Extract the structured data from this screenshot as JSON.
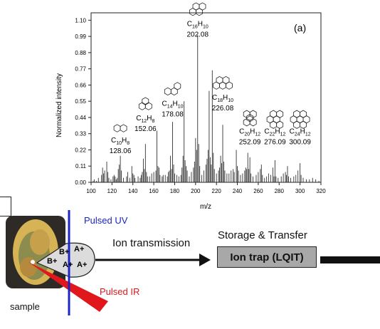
{
  "chart_data": {
    "type": "bar",
    "panel_label": "(a)",
    "xlabel": "m/z",
    "ylabel": "Normalized intensity",
    "xlim": [
      100,
      320
    ],
    "ylim": [
      0,
      1.15
    ],
    "xticks": [
      100,
      120,
      140,
      160,
      180,
      200,
      220,
      240,
      260,
      280,
      300,
      320
    ],
    "yticks": [
      "0.00",
      "0.11",
      "0.22",
      "0.33",
      "0.44",
      "0.55",
      "0.66",
      "0.77",
      "0.88",
      "0.99",
      "1.10"
    ],
    "peaks": [
      {
        "x": 102,
        "y": 0.01
      },
      {
        "x": 103,
        "y": 0.02
      },
      {
        "x": 105,
        "y": 0.01
      },
      {
        "x": 107,
        "y": 0.03
      },
      {
        "x": 110,
        "y": 0.05
      },
      {
        "x": 111,
        "y": 0.1
      },
      {
        "x": 112,
        "y": 0.06
      },
      {
        "x": 113,
        "y": 0.08
      },
      {
        "x": 115,
        "y": 0.14
      },
      {
        "x": 116,
        "y": 0.07
      },
      {
        "x": 117,
        "y": 0.03
      },
      {
        "x": 119,
        "y": 0.02
      },
      {
        "x": 121,
        "y": 0.04
      },
      {
        "x": 122,
        "y": 0.05
      },
      {
        "x": 123,
        "y": 0.04
      },
      {
        "x": 124,
        "y": 0.02
      },
      {
        "x": 125,
        "y": 0.03
      },
      {
        "x": 126,
        "y": 0.09
      },
      {
        "x": 127,
        "y": 0.12
      },
      {
        "x": 128,
        "y": 0.18
      },
      {
        "x": 129,
        "y": 0.08
      },
      {
        "x": 131,
        "y": 0.03
      },
      {
        "x": 134,
        "y": 0.04
      },
      {
        "x": 135,
        "y": 0.07
      },
      {
        "x": 137,
        "y": 0.03
      },
      {
        "x": 139,
        "y": 0.11
      },
      {
        "x": 140,
        "y": 0.06
      },
      {
        "x": 141,
        "y": 0.05
      },
      {
        "x": 142,
        "y": 0.03
      },
      {
        "x": 145,
        "y": 0.04
      },
      {
        "x": 147,
        "y": 0.03
      },
      {
        "x": 148,
        "y": 0.05
      },
      {
        "x": 149,
        "y": 0.07
      },
      {
        "x": 150,
        "y": 0.16
      },
      {
        "x": 151,
        "y": 0.09
      },
      {
        "x": 152,
        "y": 0.26
      },
      {
        "x": 153,
        "y": 0.07
      },
      {
        "x": 154,
        "y": 0.04
      },
      {
        "x": 156,
        "y": 0.04
      },
      {
        "x": 158,
        "y": 0.06
      },
      {
        "x": 160,
        "y": 0.07
      },
      {
        "x": 162,
        "y": 0.08
      },
      {
        "x": 163,
        "y": 0.35
      },
      {
        "x": 164,
        "y": 0.11
      },
      {
        "x": 165,
        "y": 0.1
      },
      {
        "x": 166,
        "y": 0.05
      },
      {
        "x": 168,
        "y": 0.04
      },
      {
        "x": 169,
        "y": 0.05
      },
      {
        "x": 171,
        "y": 0.05
      },
      {
        "x": 173,
        "y": 0.04
      },
      {
        "x": 174,
        "y": 0.07
      },
      {
        "x": 175,
        "y": 0.08
      },
      {
        "x": 176,
        "y": 0.18
      },
      {
        "x": 177,
        "y": 0.09
      },
      {
        "x": 178,
        "y": 0.41
      },
      {
        "x": 179,
        "y": 0.12
      },
      {
        "x": 180,
        "y": 0.06
      },
      {
        "x": 182,
        "y": 0.05
      },
      {
        "x": 184,
        "y": 0.04
      },
      {
        "x": 186,
        "y": 0.05
      },
      {
        "x": 187,
        "y": 0.1
      },
      {
        "x": 188,
        "y": 0.18
      },
      {
        "x": 189,
        "y": 0.55
      },
      {
        "x": 190,
        "y": 0.15
      },
      {
        "x": 191,
        "y": 0.11
      },
      {
        "x": 192,
        "y": 0.08
      },
      {
        "x": 194,
        "y": 0.04
      },
      {
        "x": 196,
        "y": 0.07
      },
      {
        "x": 198,
        "y": 0.1
      },
      {
        "x": 199,
        "y": 0.14
      },
      {
        "x": 200,
        "y": 0.3
      },
      {
        "x": 201,
        "y": 0.22
      },
      {
        "x": 202,
        "y": 1.0
      },
      {
        "x": 203,
        "y": 0.26
      },
      {
        "x": 204,
        "y": 0.11
      },
      {
        "x": 206,
        "y": 0.05
      },
      {
        "x": 208,
        "y": 0.08
      },
      {
        "x": 210,
        "y": 0.12
      },
      {
        "x": 211,
        "y": 0.16
      },
      {
        "x": 212,
        "y": 0.22
      },
      {
        "x": 213,
        "y": 0.62
      },
      {
        "x": 214,
        "y": 0.17
      },
      {
        "x": 215,
        "y": 0.12
      },
      {
        "x": 216,
        "y": 0.76
      },
      {
        "x": 217,
        "y": 0.2
      },
      {
        "x": 218,
        "y": 0.09
      },
      {
        "x": 220,
        "y": 0.06
      },
      {
        "x": 222,
        "y": 0.08
      },
      {
        "x": 223,
        "y": 0.1
      },
      {
        "x": 224,
        "y": 0.18
      },
      {
        "x": 225,
        "y": 0.13
      },
      {
        "x": 226,
        "y": 0.39
      },
      {
        "x": 227,
        "y": 0.14
      },
      {
        "x": 228,
        "y": 0.08
      },
      {
        "x": 230,
        "y": 0.06
      },
      {
        "x": 232,
        "y": 0.06
      },
      {
        "x": 234,
        "y": 0.08
      },
      {
        "x": 236,
        "y": 0.09
      },
      {
        "x": 237,
        "y": 0.07
      },
      {
        "x": 239,
        "y": 0.22
      },
      {
        "x": 240,
        "y": 0.11
      },
      {
        "x": 241,
        "y": 0.08
      },
      {
        "x": 243,
        "y": 0.05
      },
      {
        "x": 245,
        "y": 0.06
      },
      {
        "x": 247,
        "y": 0.08
      },
      {
        "x": 248,
        "y": 0.1
      },
      {
        "x": 249,
        "y": 0.09
      },
      {
        "x": 250,
        "y": 0.2
      },
      {
        "x": 251,
        "y": 0.09
      },
      {
        "x": 252,
        "y": 0.17
      },
      {
        "x": 253,
        "y": 0.06
      },
      {
        "x": 255,
        "y": 0.04
      },
      {
        "x": 258,
        "y": 0.05
      },
      {
        "x": 260,
        "y": 0.07
      },
      {
        "x": 262,
        "y": 0.09
      },
      {
        "x": 263,
        "y": 0.12
      },
      {
        "x": 264,
        "y": 0.05
      },
      {
        "x": 266,
        "y": 0.03
      },
      {
        "x": 268,
        "y": 0.04
      },
      {
        "x": 270,
        "y": 0.06
      },
      {
        "x": 272,
        "y": 0.05
      },
      {
        "x": 274,
        "y": 0.1
      },
      {
        "x": 275,
        "y": 0.04
      },
      {
        "x": 276,
        "y": 0.15
      },
      {
        "x": 277,
        "y": 0.04
      },
      {
        "x": 279,
        "y": 0.03
      },
      {
        "x": 282,
        "y": 0.04
      },
      {
        "x": 284,
        "y": 0.06
      },
      {
        "x": 286,
        "y": 0.07
      },
      {
        "x": 287,
        "y": 0.05
      },
      {
        "x": 288,
        "y": 0.11
      },
      {
        "x": 289,
        "y": 0.04
      },
      {
        "x": 291,
        "y": 0.03
      },
      {
        "x": 294,
        "y": 0.04
      },
      {
        "x": 296,
        "y": 0.05
      },
      {
        "x": 298,
        "y": 0.08
      },
      {
        "x": 300,
        "y": 0.13
      },
      {
        "x": 301,
        "y": 0.05
      },
      {
        "x": 303,
        "y": 0.03
      },
      {
        "x": 306,
        "y": 0.02
      },
      {
        "x": 309,
        "y": 0.02
      },
      {
        "x": 312,
        "y": 0.03
      },
      {
        "x": 315,
        "y": 0.02
      },
      {
        "x": 318,
        "y": 0.01
      }
    ],
    "annotations": [
      {
        "formula": "C10H8",
        "base": "C",
        "n1": "10",
        "h": "H",
        "n2": "8",
        "mass": "128.06",
        "x": 128,
        "y_label": 0.27,
        "rings": "naphthalene"
      },
      {
        "formula": "C12H8",
        "base": "C",
        "n1": "12",
        "h": "H",
        "n2": "8",
        "mass": "152.06",
        "x": 152,
        "y_label": 0.42,
        "rings": "acenaphthylene"
      },
      {
        "formula": "C14H10",
        "base": "C",
        "n1": "14",
        "h": "H",
        "n2": "10",
        "mass": "178.08",
        "x": 178,
        "y_label": 0.52,
        "rings": "phenanthrene"
      },
      {
        "formula": "C16H10",
        "base": "C",
        "n1": "16",
        "h": "H",
        "n2": "10",
        "mass": "202.08",
        "x": 202,
        "y_label": 1.06,
        "rings": "pyrene"
      },
      {
        "formula": "C18H10",
        "base": "C",
        "n1": "18",
        "h": "H",
        "n2": "10",
        "mass": "226.08",
        "x": 226,
        "y_label": 0.56,
        "rings": "benzoghi"
      },
      {
        "formula": "C20H12",
        "base": "C",
        "n1": "20",
        "h": "H",
        "n2": "12",
        "mass": "252.09",
        "x": 252,
        "y_label": 0.33,
        "rings": "perylene"
      },
      {
        "formula": "C22H12",
        "base": "C",
        "n1": "22",
        "h": "H",
        "n2": "12",
        "mass": "276.09",
        "x": 276,
        "y_label": 0.33,
        "rings": "benzoperylene"
      },
      {
        "formula": "C24H12",
        "base": "C",
        "n1": "24",
        "h": "H",
        "n2": "12",
        "mass": "300.09",
        "x": 300,
        "y_label": 0.33,
        "rings": "coronene"
      }
    ]
  },
  "diagram": {
    "pulsed_uv": "Pulsed UV",
    "pulsed_ir": "Pulsed IR",
    "sample": "sample",
    "ion_transmission": "Ion transmission",
    "storage_transfer": "Storage & Transfer",
    "ion_trap": "Ion trap (LQIT)",
    "ions": [
      "B+",
      "A+",
      "B+",
      "A+",
      "A+"
    ],
    "colors": {
      "uv": "#1a24c8",
      "ir": "#e0171b",
      "ion_trap": "#a8a8a8",
      "spectrum": "#222222"
    }
  }
}
